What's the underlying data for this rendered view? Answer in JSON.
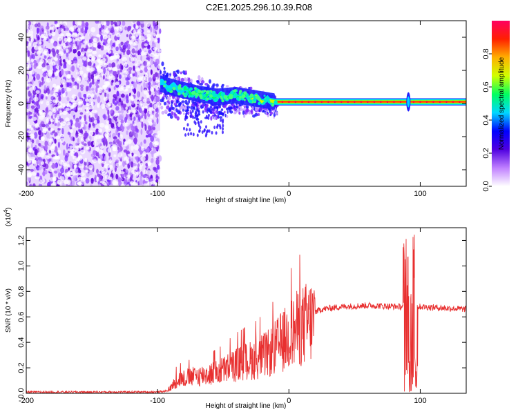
{
  "title": "C2E1.2025.296.10.39.R08",
  "chart_data": [
    {
      "type": "heatmap",
      "name": "spectrogram",
      "xlabel": "Height of straight line (km)",
      "ylabel": "Frequency (Hz)",
      "xlim": [
        -200,
        135
      ],
      "ylim": [
        -50,
        50
      ],
      "xticks": [
        -200,
        -100,
        0,
        100
      ],
      "xtick_labels": [
        "-200",
        "-100",
        "0",
        "100"
      ],
      "yticks": [
        -40,
        -20,
        0,
        20,
        40
      ],
      "ytick_labels": [
        "-40",
        "-20",
        "0",
        "20",
        "40"
      ],
      "colorbar": {
        "label": "Normalized spectral amplitude",
        "range": [
          0,
          1
        ],
        "ticks": [
          0.0,
          0.2,
          0.4,
          0.6,
          0.8
        ],
        "tick_labels": [
          "0.0",
          "0.2",
          "0.4",
          "0.6",
          "0.8"
        ],
        "colors": [
          "#ffffff",
          "#c080ff",
          "#5000e0",
          "#0000ff",
          "#00d8ff",
          "#00ff60",
          "#d0ff00",
          "#ffb000",
          "#ff2000",
          "#ff0060"
        ]
      },
      "regions": {
        "noise_x_range": [
          -200,
          -98
        ],
        "signal_track": [
          {
            "x": -98,
            "freq": 12
          },
          {
            "x": -85,
            "freq": 9
          },
          {
            "x": -70,
            "freq": 6
          },
          {
            "x": -55,
            "freq": 4
          },
          {
            "x": -40,
            "freq": 5
          },
          {
            "x": -25,
            "freq": 3
          },
          {
            "x": -10,
            "freq": 1
          },
          {
            "x": 0,
            "freq": 1
          },
          {
            "x": 50,
            "freq": 1
          },
          {
            "x": 88,
            "freq": 1
          },
          {
            "x": 95,
            "freq": 1
          },
          {
            "x": 135,
            "freq": 1
          }
        ],
        "spike_x": 91
      }
    },
    {
      "type": "line",
      "name": "snr",
      "xlabel": "Height of straight line (km)",
      "ylabel": "SNR (10 * v/v)",
      "ylabel_scale": "(x10",
      "ylabel_scale_exponent": "4",
      "ylabel_scale_close": ")",
      "xlim": [
        -200,
        135
      ],
      "ylim": [
        0,
        1.3
      ],
      "xticks": [
        -200,
        -100,
        0,
        100
      ],
      "xtick_labels": [
        "-200",
        "-100",
        "0",
        "100"
      ],
      "yticks": [
        0.0,
        0.2,
        0.4,
        0.6,
        0.8,
        1.0,
        1.2
      ],
      "ytick_labels": [
        "0.0",
        "0.2",
        "0.4",
        "0.6",
        "0.8",
        "1.0",
        "1.2"
      ],
      "line_color": "#e83030",
      "envelope": [
        {
          "x": -200,
          "y": 0.01
        },
        {
          "x": -100,
          "y": 0.01
        },
        {
          "x": -92,
          "y": 0.02
        },
        {
          "x": -85,
          "y": 0.12
        },
        {
          "x": -70,
          "y": 0.15
        },
        {
          "x": -55,
          "y": 0.18
        },
        {
          "x": -40,
          "y": 0.25
        },
        {
          "x": -25,
          "y": 0.3
        },
        {
          "x": -15,
          "y": 0.35
        },
        {
          "x": -5,
          "y": 0.45
        },
        {
          "x": 5,
          "y": 0.55
        },
        {
          "x": 15,
          "y": 0.62
        },
        {
          "x": 25,
          "y": 0.66
        },
        {
          "x": 40,
          "y": 0.68
        },
        {
          "x": 60,
          "y": 0.69
        },
        {
          "x": 85,
          "y": 0.68
        },
        {
          "x": 100,
          "y": 0.68
        },
        {
          "x": 135,
          "y": 0.66
        }
      ],
      "spike": {
        "x_range": [
          87,
          98
        ],
        "peak": 1.28,
        "min": 0.0
      }
    }
  ]
}
